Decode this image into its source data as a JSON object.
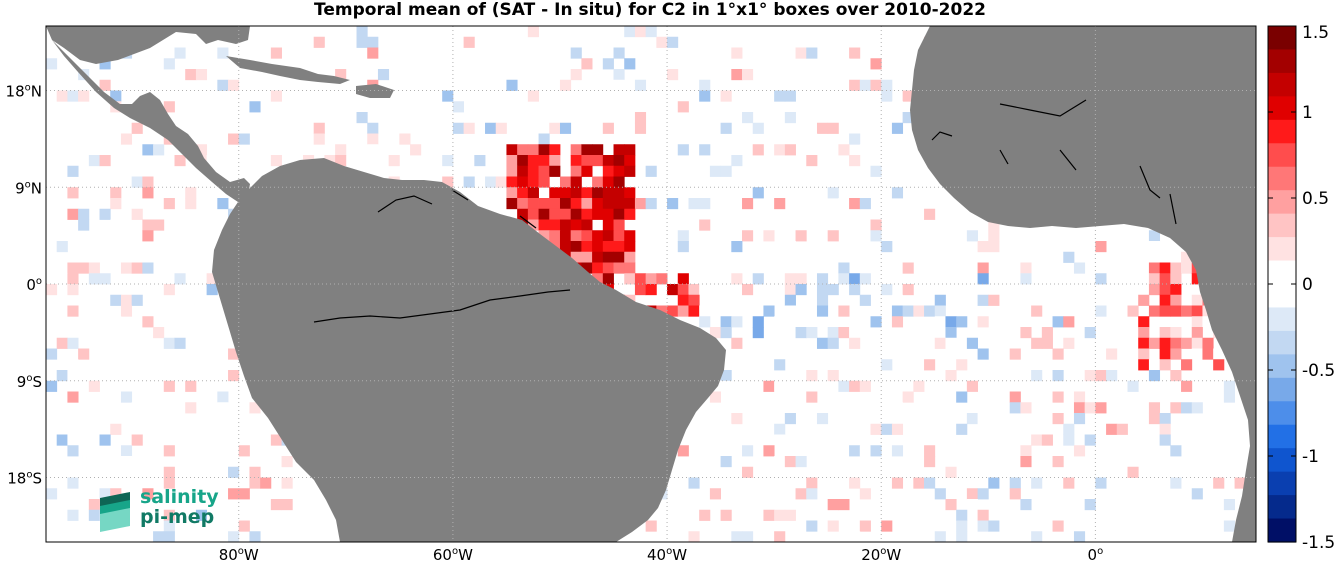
{
  "title": "Temporal mean of (SAT - In situ) for C2 in 1°x1° boxes over 2010-2022",
  "map": {
    "lon_range": [
      -98,
      15
    ],
    "lat_range": [
      -24,
      24
    ],
    "lat_labels": [
      {
        "value": 18,
        "text": "18oN"
      },
      {
        "value": 9,
        "text": "9oN"
      },
      {
        "value": 0,
        "text": "0o"
      },
      {
        "value": -9,
        "text": "9oS"
      },
      {
        "value": -18,
        "text": "18oS"
      }
    ],
    "lon_labels": [
      {
        "value": -80,
        "text": "80oW"
      },
      {
        "value": -60,
        "text": "60oW"
      },
      {
        "value": -40,
        "text": "40oW"
      },
      {
        "value": -20,
        "text": "20oW"
      },
      {
        "value": 0,
        "text": "0o"
      }
    ],
    "land_color": "#808080",
    "grid": true
  },
  "colorbar": {
    "min": -1.5,
    "max": 1.5,
    "tick_labels": [
      "1.5",
      "1",
      "0.5",
      "0",
      "-0.5",
      "-1",
      "-1.5"
    ],
    "colors_top_to_bottom": [
      "#7a0000",
      "#a30000",
      "#c40000",
      "#e00000",
      "#ff1a1a",
      "#ff4d4d",
      "#ff7777",
      "#ffa0a0",
      "#ffc4c4",
      "#ffe2e2",
      "#ffffff",
      "#ffffff",
      "#dde9f7",
      "#c2d8f2",
      "#9fc3ee",
      "#78a9e9",
      "#4d8eea",
      "#2270e6",
      "#0f55cf",
      "#0a3fb0",
      "#052a8c",
      "#000f66"
    ]
  },
  "logo": {
    "line1": "salinity",
    "line2": "pi-mep"
  }
}
